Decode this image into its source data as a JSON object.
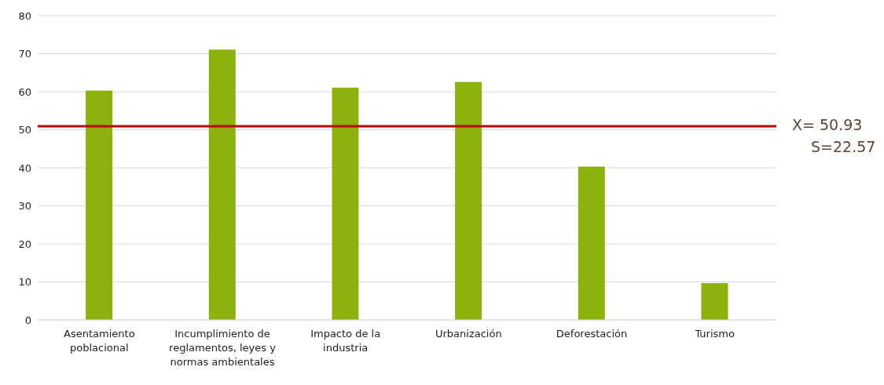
{
  "chart_data": {
    "type": "bar",
    "categories": [
      "Asentamiento poblacional",
      "Incumplimiento de reglamentos, leyes y normas ambientales",
      "Impacto de la industria",
      "Urbanización",
      "Deforestación",
      "Turismo"
    ],
    "values": [
      60.3,
      71.1,
      61.1,
      62.6,
      40.3,
      9.7
    ],
    "color": "#8db10f",
    "ylim": [
      0,
      80
    ],
    "yticks": [
      0,
      10,
      20,
      30,
      40,
      50,
      60,
      70,
      80
    ],
    "grid": "y",
    "legend": false,
    "ref_lines": [
      {
        "axis": "y",
        "value": 50.93,
        "label": "X= 50.93\nS=22.57",
        "color": "#c00000"
      }
    ]
  }
}
